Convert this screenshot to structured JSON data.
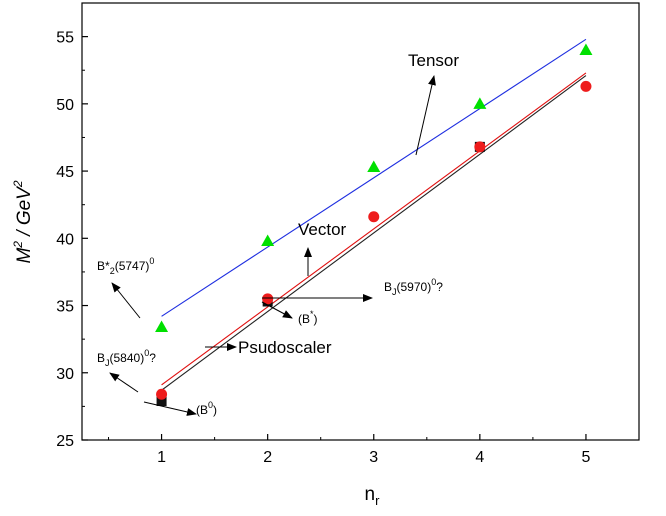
{
  "chart_data": {
    "type": "scatter",
    "xlabel": "n",
    "xlabel_sub": "r",
    "ylabel": "M",
    "ylabel_sup": "2",
    "ylabel_mid": " / GeV",
    "ylabel_sup2": "2",
    "xlim": [
      0.25,
      5.5
    ],
    "ylim": [
      25,
      57.5
    ],
    "x_ticks": [
      1,
      2,
      3,
      4,
      5
    ],
    "y_ticks": [
      25,
      30,
      35,
      40,
      45,
      50,
      55
    ],
    "grid": false,
    "series": [
      {
        "name": "Tensor",
        "marker": "triangle",
        "color": "#00e000",
        "x": [
          1,
          2,
          3,
          4,
          5
        ],
        "y": [
          33.4,
          39.8,
          45.3,
          50.0,
          54.0
        ],
        "fit": {
          "color": "#1f2fe0",
          "x": [
            1,
            5
          ],
          "y": [
            34.2,
            54.8
          ]
        }
      },
      {
        "name": "Vector",
        "marker": "circle",
        "color": "#ee1c1c",
        "x": [
          1,
          2,
          3,
          4,
          5
        ],
        "y": [
          28.4,
          35.5,
          41.6,
          46.8,
          51.3
        ],
        "fit": {
          "color": "#e01010",
          "x": [
            1,
            5
          ],
          "y": [
            29.1,
            52.3
          ]
        }
      },
      {
        "name": "Psudoscaler",
        "marker": "square",
        "color": "#111111",
        "x": [
          1,
          2,
          4
        ],
        "y": [
          27.9,
          35.3,
          46.8
        ],
        "fit": {
          "color": "#222222",
          "x": [
            1,
            5
          ],
          "y": [
            28.7,
            52.1
          ]
        }
      }
    ],
    "annotations": {
      "tensor": "Tensor",
      "vector": "Vector",
      "psudoscaler": "Psudoscaler",
      "b2star": "B*",
      "b2star_sub": "2",
      "b2star_rest": "(5747)",
      "b2star_sup": "0",
      "bj5970": "B",
      "bj5970_sub": "J",
      "bj5970_rest": "(5970)",
      "bj5970_sup": "0",
      "bj5970_q": "?",
      "bstar": "(B",
      "bstar_sup": "*",
      "bstar_close": ")",
      "bj5840": "B",
      "bj5840_sub": "J",
      "bj5840_rest": "(5840)",
      "bj5840_sup": "0",
      "bj5840_q": "?",
      "b0": "(B",
      "b0_sup": "0",
      "b0_close": ")"
    }
  }
}
